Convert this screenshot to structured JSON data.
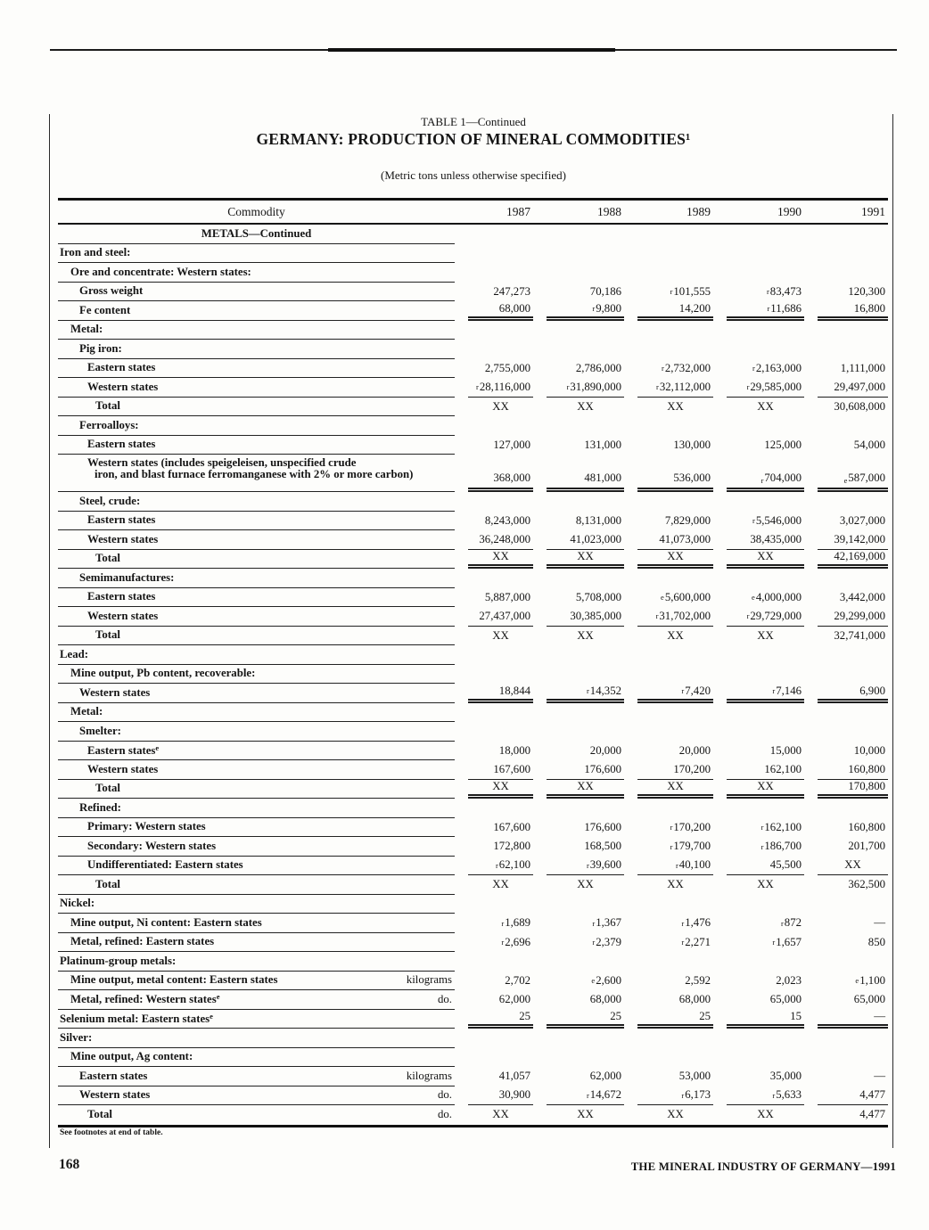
{
  "page": {
    "number": "168",
    "running_footer": "THE MINERAL INDUSTRY OF GERMANY—1991",
    "footnote": "See footnotes at end of table."
  },
  "table": {
    "caption": "TABLE 1—Continued",
    "title": "GERMANY: PRODUCTION OF MINERAL COMMODITIES¹",
    "subtitle": "(Metric tons unless otherwise specified)",
    "columns": {
      "commodity": "Commodity",
      "years": [
        "1987",
        "1988",
        "1989",
        "1990",
        "1991"
      ]
    },
    "rows": [
      {
        "label": "METALS—Continued",
        "center": true
      },
      {
        "label": "Iron and steel:",
        "indent": 0
      },
      {
        "label": "Ore and concentrate: Western states:",
        "indent": 1
      },
      {
        "label": "Gross weight",
        "indent": 2,
        "values": [
          "247,273",
          "70,186",
          "ʳ101,555",
          "ʳ83,473",
          "120,300"
        ]
      },
      {
        "label": "Fe content",
        "indent": 2,
        "values": [
          "68,000",
          "ʳ9,800",
          "14,200",
          "ʳ11,686",
          "16,800"
        ],
        "vrule": "double"
      },
      {
        "label": "Metal:",
        "indent": 1
      },
      {
        "label": "Pig iron:",
        "indent": 2
      },
      {
        "label": "Eastern states",
        "indent": 3,
        "values": [
          "2,755,000",
          "2,786,000",
          "ʳ2,732,000",
          "ʳ2,163,000",
          "1,111,000"
        ]
      },
      {
        "label": "Western states",
        "indent": 3,
        "values": [
          "ʳ28,116,000",
          "ʳ31,890,000",
          "ʳ32,112,000",
          "ʳ29,585,000",
          "29,497,000"
        ],
        "vrule": "single"
      },
      {
        "label": "Total",
        "indent": 4,
        "values": [
          "XX",
          "XX",
          "XX",
          "XX",
          "30,608,000"
        ]
      },
      {
        "label": "Ferroalloys:",
        "indent": 2
      },
      {
        "label": "Eastern states",
        "indent": 3,
        "values": [
          "127,000",
          "131,000",
          "130,000",
          "125,000",
          "54,000"
        ]
      },
      {
        "label": "Western states (includes speigeleisen, unspecified crude",
        "label2": "iron, and blast furnace ferromanganese with 2% or more carbon)",
        "indent": 3,
        "values": [
          "368,000",
          "481,000",
          "536,000",
          "ʳ704,000",
          "ᵉ587,000"
        ],
        "vrule": "double"
      },
      {
        "label": "Steel, crude:",
        "indent": 2
      },
      {
        "label": "Eastern states",
        "indent": 3,
        "values": [
          "8,243,000",
          "8,131,000",
          "7,829,000",
          "ʳ5,546,000",
          "3,027,000"
        ]
      },
      {
        "label": "Western states",
        "indent": 3,
        "values": [
          "36,248,000",
          "41,023,000",
          "41,073,000",
          "38,435,000",
          "39,142,000"
        ],
        "vrule": "single"
      },
      {
        "label": "Total",
        "indent": 4,
        "values": [
          "XX",
          "XX",
          "XX",
          "XX",
          "42,169,000"
        ],
        "vrule": "double"
      },
      {
        "label": "Semimanufactures:",
        "indent": 2
      },
      {
        "label": "Eastern states",
        "indent": 3,
        "values": [
          "5,887,000",
          "5,708,000",
          "ᵉ5,600,000",
          "ᵉ4,000,000",
          "3,442,000"
        ]
      },
      {
        "label": "Western states",
        "indent": 3,
        "values": [
          "27,437,000",
          "30,385,000",
          "ʳ31,702,000",
          "ʳ29,729,000",
          "29,299,000"
        ],
        "vrule": "single"
      },
      {
        "label": "Total",
        "indent": 4,
        "values": [
          "XX",
          "XX",
          "XX",
          "XX",
          "32,741,000"
        ]
      },
      {
        "label": "Lead:",
        "indent": 0
      },
      {
        "label": "Mine output, Pb content, recoverable:",
        "indent": 1
      },
      {
        "label": "Western states",
        "indent": 2,
        "values": [
          "18,844",
          "ʳ14,352",
          "ʳ7,420",
          "ʳ7,146",
          "6,900"
        ],
        "vrule": "double"
      },
      {
        "label": "Metal:",
        "indent": 1
      },
      {
        "label": "Smelter:",
        "indent": 2
      },
      {
        "label": "Eastern statesᵉ",
        "indent": 3,
        "values": [
          "18,000",
          "20,000",
          "20,000",
          "15,000",
          "10,000"
        ]
      },
      {
        "label": "Western states",
        "indent": 3,
        "values": [
          "167,600",
          "176,600",
          "170,200",
          "162,100",
          "160,800"
        ],
        "vrule": "single"
      },
      {
        "label": "Total",
        "indent": 4,
        "values": [
          "XX",
          "XX",
          "XX",
          "XX",
          "170,800"
        ],
        "vrule": "double"
      },
      {
        "label": "Refined:",
        "indent": 2
      },
      {
        "label": "Primary: Western states",
        "indent": 3,
        "values": [
          "167,600",
          "176,600",
          "ʳ170,200",
          "ʳ162,100",
          "160,800"
        ]
      },
      {
        "label": "Secondary: Western states",
        "indent": 3,
        "values": [
          "172,800",
          "168,500",
          "ʳ179,700",
          "ʳ186,700",
          "201,700"
        ]
      },
      {
        "label": "Undifferentiated: Eastern states",
        "indent": 3,
        "values": [
          "ʳ62,100",
          "ʳ39,600",
          "ʳ40,100",
          "45,500",
          "XX"
        ],
        "vrule": "single"
      },
      {
        "label": "Total",
        "indent": 4,
        "values": [
          "XX",
          "XX",
          "XX",
          "XX",
          "362,500"
        ]
      },
      {
        "label": "Nickel:",
        "indent": 0
      },
      {
        "label": "Mine output, Ni content: Eastern states",
        "indent": 1,
        "values": [
          "ʳ1,689",
          "ʳ1,367",
          "ʳ1,476",
          "ʳ872",
          "—"
        ]
      },
      {
        "label": "Metal, refined: Eastern states",
        "indent": 1,
        "values": [
          "ʳ2,696",
          "ʳ2,379",
          "ʳ2,271",
          "ʳ1,657",
          "850"
        ]
      },
      {
        "label": "Platinum-group metals:",
        "indent": 0
      },
      {
        "label": "Mine output, metal content: Eastern states",
        "indent": 1,
        "unit": "kilograms",
        "values": [
          "2,702",
          "ᵉ2,600",
          "2,592",
          "2,023",
          "ᵉ1,100"
        ]
      },
      {
        "label": "Metal, refined: Western statesᵉ",
        "indent": 1,
        "unit": "do.",
        "values": [
          "62,000",
          "68,000",
          "68,000",
          "65,000",
          "65,000"
        ]
      },
      {
        "label": "Selenium metal: Eastern statesᵉ",
        "indent": 0,
        "values": [
          "25",
          "25",
          "25",
          "15",
          "—"
        ],
        "vrule": "double"
      },
      {
        "label": "Silver:",
        "indent": 0
      },
      {
        "label": "Mine output, Ag content:",
        "indent": 1
      },
      {
        "label": "Eastern states",
        "indent": 2,
        "unit": "kilograms",
        "values": [
          "41,057",
          "62,000",
          "53,000",
          "35,000",
          "—"
        ]
      },
      {
        "label": "Western states",
        "indent": 2,
        "unit": "do.",
        "values": [
          "30,900",
          "ʳ14,672",
          "ʳ6,173",
          "ʳ5,633",
          "4,477"
        ],
        "vrule": "single"
      },
      {
        "label": "Total",
        "indent": 3,
        "unit": "do.",
        "values": [
          "XX",
          "XX",
          "XX",
          "XX",
          "4,477"
        ],
        "last": true
      }
    ]
  }
}
